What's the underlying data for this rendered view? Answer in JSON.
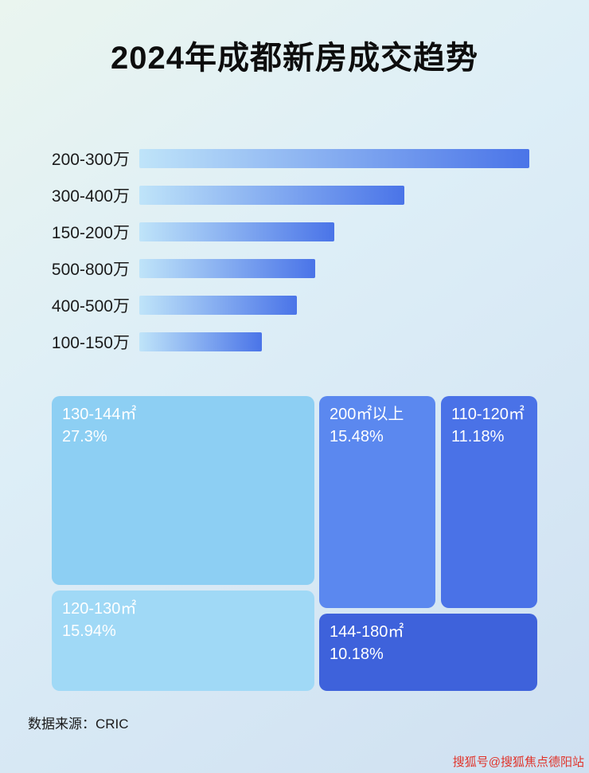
{
  "page": {
    "title": "2024年成都新房成交趋势",
    "source": "数据来源：CRIC",
    "watermark": "搜狐号@搜狐焦点德阳站"
  },
  "colors": {
    "bar_gradient_start": "#bfe4f9",
    "bar_gradient_end": "#4a74e8",
    "watermark_red": "#e0342b"
  },
  "chart_data": [
    {
      "type": "bar",
      "title": "2024年成都新房成交趋势",
      "orientation": "horizontal",
      "categories": [
        "200-300万",
        "300-400万",
        "150-200万",
        "500-800万",
        "400-500万",
        "100-150万"
      ],
      "values": [
        100,
        68,
        50,
        45,
        40.5,
        31.5
      ],
      "note": "no numeric axis shown; values are bar lengths as percent of the longest bar",
      "legend": "none",
      "grid": "off"
    },
    {
      "type": "treemap",
      "items": [
        {
          "label": "130-144㎡",
          "value": 27.3,
          "pct": "27.3%",
          "color": "#8dcff3"
        },
        {
          "label": "120-130㎡",
          "value": 15.94,
          "pct": "15.94%",
          "color": "#a0d9f6"
        },
        {
          "label": "200㎡以上",
          "value": 15.48,
          "pct": "15.48%",
          "color": "#5b88ef"
        },
        {
          "label": "110-120㎡",
          "value": 11.18,
          "pct": "11.18%",
          "color": "#4a72e7"
        },
        {
          "label": "144-180㎡",
          "value": 10.18,
          "pct": "10.18%",
          "color": "#3e62db"
        }
      ]
    }
  ]
}
